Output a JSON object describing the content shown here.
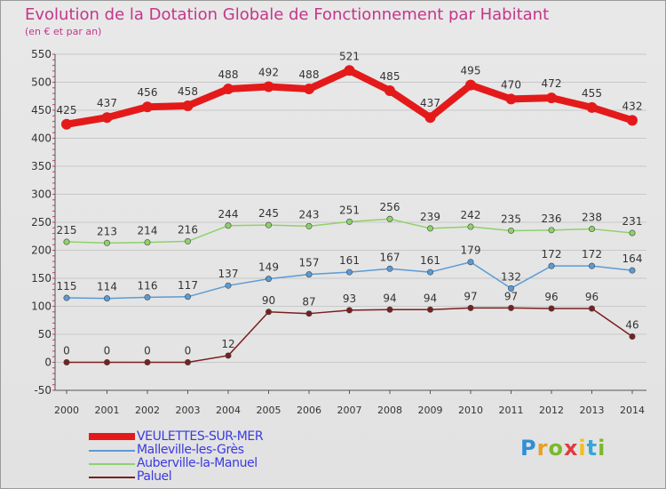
{
  "header": {
    "title": "Evolution de la Dotation Globale de Fonctionnement par Habitant",
    "subtitle": "(en € et par an)"
  },
  "logo": {
    "text": "Proxiti"
  },
  "chart_data": {
    "type": "line",
    "x": [
      2000,
      2001,
      2002,
      2003,
      2004,
      2005,
      2006,
      2007,
      2008,
      2009,
      2010,
      2011,
      2012,
      2013,
      2014
    ],
    "ylim": [
      -50,
      550
    ],
    "yticks": [
      -50,
      0,
      50,
      100,
      150,
      200,
      250,
      300,
      350,
      400,
      450,
      500,
      550
    ],
    "grid": true,
    "legend_position": "bottom-left",
    "series": [
      {
        "name": "VEULETTES-SUR-MER",
        "color": "#e41a1a",
        "values": [
          425,
          437,
          456,
          458,
          488,
          492,
          488,
          521,
          485,
          437,
          495,
          470,
          472,
          455,
          432
        ]
      },
      {
        "name": "Malleville-les-Grès",
        "color": "#5b9bd5",
        "values": [
          115,
          114,
          116,
          117,
          137,
          149,
          157,
          161,
          167,
          161,
          179,
          132,
          172,
          172,
          164
        ]
      },
      {
        "name": "Auberville-la-Manuel",
        "color": "#8fd16a",
        "values": [
          215,
          213,
          214,
          216,
          244,
          245,
          243,
          251,
          256,
          239,
          242,
          235,
          236,
          238,
          231
        ]
      },
      {
        "name": "Paluel",
        "color": "#7a1f1f",
        "values": [
          0,
          0,
          0,
          0,
          12,
          90,
          87,
          93,
          94,
          94,
          97,
          97,
          96,
          96,
          46
        ]
      }
    ]
  }
}
